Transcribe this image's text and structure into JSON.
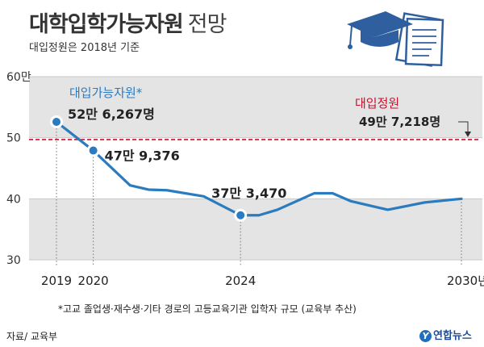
{
  "header": {
    "title_main": "대학입학가능자원",
    "title_sub": "전망",
    "subtitle": "대입정원은 2018년 기준"
  },
  "footer": {
    "footnote": "*고교 졸업생·재수생·기타 경로의 고등교육기관 입학자 규모 (교육부 추산)",
    "source": "자료/ 교육부",
    "brand": "연합뉴스"
  },
  "colors": {
    "line": "#2b7bbf",
    "quota": "#c8102e",
    "band": "#e4e4e4",
    "dot": "#2b7bbf",
    "icon": "#2f5f9e"
  },
  "icons": [
    "graduation-cap-icon",
    "document-icon"
  ],
  "chart_data": {
    "type": "line",
    "title": "대학입학가능자원 전망",
    "subtitle": "대입정원은 2018년 기준",
    "y_unit_label": "60만",
    "y_ticks": [
      30,
      40,
      50,
      60
    ],
    "y_tick_labels": [
      "30",
      "40",
      "50",
      "60만"
    ],
    "ylim": [
      30,
      60
    ],
    "xlim": [
      2019,
      2030
    ],
    "x_ticks": [
      2019,
      2020,
      2024,
      2030
    ],
    "x_tick_labels": [
      "2019",
      "2020",
      "2024",
      "2030년"
    ],
    "series": [
      {
        "name": "대입가능자원*",
        "x": [
          2019,
          2020,
          2021,
          2021.5,
          2022,
          2023,
          2024,
          2024.5,
          2025,
          2026,
          2026.5,
          2027,
          2028,
          2029,
          2030
        ],
        "values": [
          52.6,
          47.9,
          42.2,
          41.5,
          41.4,
          40.4,
          37.3,
          37.3,
          38.2,
          40.9,
          40.9,
          39.6,
          38.2,
          39.4,
          40.0
        ],
        "annotations": [
          {
            "x": 2019,
            "y": 52.6,
            "label": "52만 6,267명"
          },
          {
            "x": 2020,
            "y": 47.9,
            "label": "47만 9,376"
          },
          {
            "x": 2024,
            "y": 37.3,
            "label": "37만 3,470"
          }
        ]
      }
    ],
    "reference_line": {
      "name": "대입정원",
      "value": 49.7,
      "label": "49만 7,218명"
    },
    "grid": true,
    "legend": "inline labels"
  }
}
